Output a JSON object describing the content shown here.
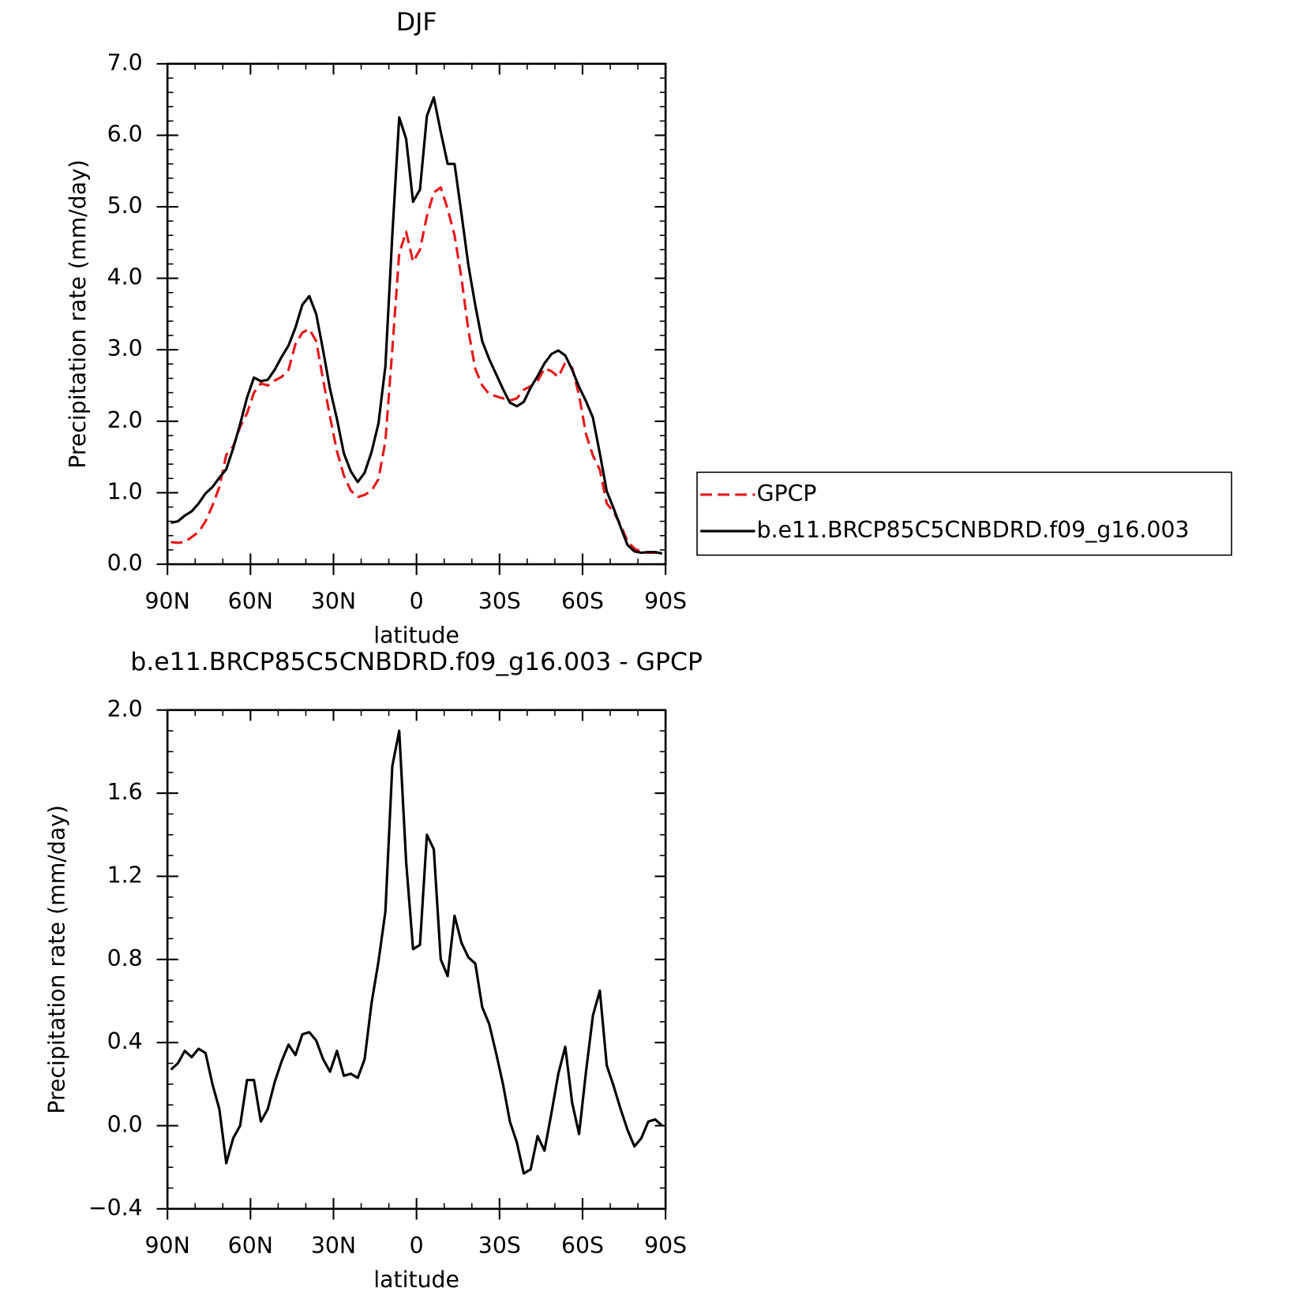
{
  "chart_data": [
    {
      "type": "line",
      "title": "DJF",
      "xlabel": "latitude",
      "ylabel": "Precipitation rate (mm/day)",
      "x": [
        88.75,
        86.25,
        83.75,
        81.25,
        78.75,
        76.25,
        73.75,
        71.25,
        68.75,
        66.25,
        63.75,
        61.25,
        58.75,
        56.25,
        53.75,
        51.25,
        48.75,
        46.25,
        43.75,
        41.25,
        38.75,
        36.25,
        33.75,
        31.25,
        28.75,
        26.25,
        23.75,
        21.25,
        18.75,
        16.25,
        13.75,
        11.25,
        8.75,
        6.25,
        3.75,
        1.25,
        -1.25,
        -3.75,
        -6.25,
        -8.75,
        -11.25,
        -13.75,
        -16.25,
        -18.75,
        -21.25,
        -23.75,
        -26.25,
        -28.75,
        -31.25,
        -33.75,
        -36.25,
        -38.75,
        -41.25,
        -43.75,
        -46.25,
        -48.75,
        -51.25,
        -53.75,
        -56.25,
        -58.75,
        -61.25,
        -63.75,
        -66.25,
        -68.75,
        -71.25,
        -73.75,
        -76.25,
        -78.75,
        -81.25,
        -83.75,
        -86.25,
        -88.75
      ],
      "series": [
        {
          "name": "GPCP",
          "color": "#e41a1c",
          "linestyle": "dashed",
          "values": [
            0.31,
            0.3,
            0.31,
            0.38,
            0.45,
            0.6,
            0.82,
            1.08,
            1.53,
            1.65,
            1.92,
            2.11,
            2.4,
            2.53,
            2.5,
            2.57,
            2.62,
            2.72,
            3.08,
            3.24,
            3.29,
            3.12,
            2.58,
            2.06,
            1.58,
            1.24,
            1.03,
            0.94,
            0.97,
            1.03,
            1.19,
            1.72,
            3.0,
            4.35,
            4.65,
            4.23,
            4.4,
            4.87,
            5.2,
            5.27,
            4.97,
            4.6,
            4.0,
            3.27,
            2.73,
            2.5,
            2.38,
            2.35,
            2.32,
            2.29,
            2.32,
            2.44,
            2.49,
            2.56,
            2.74,
            2.7,
            2.62,
            2.82,
            2.75,
            2.36,
            1.82,
            1.52,
            1.32,
            0.85,
            0.73,
            0.55,
            0.32,
            0.22,
            0.17,
            0.16,
            0.16,
            0.15
          ]
        },
        {
          "name": "b.e11.BRCP85C5CNBDRD.f09_g16.003",
          "color": "#000000",
          "linestyle": "solid",
          "values": [
            0.58,
            0.6,
            0.68,
            0.74,
            0.85,
            0.99,
            1.08,
            1.21,
            1.33,
            1.62,
            1.96,
            2.33,
            2.61,
            2.56,
            2.58,
            2.72,
            2.9,
            3.06,
            3.31,
            3.63,
            3.75,
            3.5,
            2.99,
            2.45,
            2.03,
            1.55,
            1.3,
            1.15,
            1.28,
            1.57,
            1.97,
            2.77,
            4.6,
            6.25,
            5.95,
            5.07,
            5.24,
            6.27,
            6.53,
            6.05,
            5.6,
            5.6,
            4.9,
            4.18,
            3.62,
            3.12,
            2.87,
            2.66,
            2.45,
            2.26,
            2.21,
            2.27,
            2.47,
            2.63,
            2.81,
            2.94,
            2.99,
            2.92,
            2.72,
            2.48,
            2.28,
            2.05,
            1.55,
            1.02,
            0.78,
            0.52,
            0.27,
            0.18,
            0.16,
            0.17,
            0.17,
            0.15
          ]
        }
      ],
      "xlim": [
        90,
        -90
      ],
      "xticks": [
        {
          "value": 90,
          "label": "90N"
        },
        {
          "value": 60,
          "label": "60N"
        },
        {
          "value": 30,
          "label": "30N"
        },
        0,
        {
          "value": -30,
          "label": "30S"
        },
        {
          "value": -60,
          "label": "60S"
        },
        {
          "value": -90,
          "label": "90S"
        }
      ],
      "xminorticks": [
        80,
        70,
        50,
        40,
        20,
        10,
        -10,
        -20,
        -40,
        -50,
        -70,
        -80
      ],
      "ylim": [
        0,
        7
      ],
      "yticks": [
        {
          "value": 0,
          "label": "0.0"
        },
        {
          "value": 1,
          "label": "1.0"
        },
        {
          "value": 2,
          "label": "2.0"
        },
        {
          "value": 3,
          "label": "3.0"
        },
        {
          "value": 4,
          "label": "4.0"
        },
        {
          "value": 5,
          "label": "5.0"
        },
        {
          "value": 6,
          "label": "6.0"
        },
        {
          "value": 7,
          "label": "7.0"
        }
      ],
      "yminorticks": [
        0.2,
        0.4,
        0.6,
        0.8,
        1.2,
        1.4,
        1.6,
        1.8,
        2.2,
        2.4,
        2.6,
        2.8,
        3.2,
        3.4,
        3.6,
        3.8,
        4.2,
        4.4,
        4.6,
        4.8,
        5.2,
        5.4,
        5.6,
        5.8,
        6.2,
        6.4,
        6.6,
        6.8
      ],
      "legend": "right"
    },
    {
      "type": "line",
      "title": "b.e11.BRCP85C5CNBDRD.f09_g16.003 - GPCP",
      "xlabel": "latitude",
      "ylabel": "Precipitation rate (mm/day)",
      "x": [
        88.75,
        86.25,
        83.75,
        81.25,
        78.75,
        76.25,
        73.75,
        71.25,
        68.75,
        66.25,
        63.75,
        61.25,
        58.75,
        56.25,
        53.75,
        51.25,
        48.75,
        46.25,
        43.75,
        41.25,
        38.75,
        36.25,
        33.75,
        31.25,
        28.75,
        26.25,
        23.75,
        21.25,
        18.75,
        16.25,
        13.75,
        11.25,
        8.75,
        6.25,
        3.75,
        1.25,
        -1.25,
        -3.75,
        -6.25,
        -8.75,
        -11.25,
        -13.75,
        -16.25,
        -18.75,
        -21.25,
        -23.75,
        -26.25,
        -28.75,
        -31.25,
        -33.75,
        -36.25,
        -38.75,
        -41.25,
        -43.75,
        -46.25,
        -48.75,
        -51.25,
        -53.75,
        -56.25,
        -58.75,
        -61.25,
        -63.75,
        -66.25,
        -68.75,
        -71.25,
        -73.75,
        -76.25,
        -78.75,
        -81.25,
        -83.75,
        -86.25,
        -88.75
      ],
      "values": [
        0.27,
        0.3,
        0.36,
        0.33,
        0.37,
        0.35,
        0.2,
        0.08,
        -0.18,
        -0.06,
        0.0,
        0.22,
        0.22,
        0.02,
        0.08,
        0.21,
        0.31,
        0.39,
        0.34,
        0.44,
        0.45,
        0.41,
        0.32,
        0.26,
        0.36,
        0.24,
        0.25,
        0.23,
        0.32,
        0.59,
        0.79,
        1.03,
        1.73,
        1.9,
        1.27,
        0.85,
        0.87,
        1.4,
        1.33,
        0.8,
        0.72,
        1.01,
        0.88,
        0.81,
        0.78,
        0.57,
        0.49,
        0.35,
        0.2,
        0.02,
        -0.08,
        -0.23,
        -0.21,
        -0.05,
        -0.12,
        0.06,
        0.25,
        0.38,
        0.11,
        -0.04,
        0.26,
        0.53,
        0.65,
        0.29,
        0.19,
        0.08,
        -0.02,
        -0.1,
        -0.06,
        0.02,
        0.03,
        0.0
      ],
      "color": "#000000",
      "xlim": [
        90,
        -90
      ],
      "xticks": [
        {
          "value": 90,
          "label": "90N"
        },
        {
          "value": 60,
          "label": "60N"
        },
        {
          "value": 30,
          "label": "30N"
        },
        0,
        {
          "value": -30,
          "label": "30S"
        },
        {
          "value": -60,
          "label": "60S"
        },
        {
          "value": -90,
          "label": "90S"
        }
      ],
      "xminorticks": [
        80,
        70,
        50,
        40,
        20,
        10,
        -10,
        -20,
        -40,
        -50,
        -70,
        -80
      ],
      "ylim": [
        -0.4,
        2
      ],
      "yticks": [
        {
          "value": -0.4,
          "label": "−0.4"
        },
        {
          "value": 0,
          "label": "0.0"
        },
        {
          "value": 0.4,
          "label": "0.4"
        },
        {
          "value": 0.8,
          "label": "0.8"
        },
        {
          "value": 1.2,
          "label": "1.2"
        },
        {
          "value": 1.6,
          "label": "1.6"
        },
        {
          "value": 2,
          "label": "2.0"
        }
      ],
      "yminorticks": [
        -0.3,
        -0.2,
        -0.1,
        0.1,
        0.2,
        0.3,
        0.5,
        0.6,
        0.7,
        0.9,
        1.0,
        1.1,
        1.3,
        1.4,
        1.5,
        1.7,
        1.8,
        1.9
      ]
    }
  ]
}
